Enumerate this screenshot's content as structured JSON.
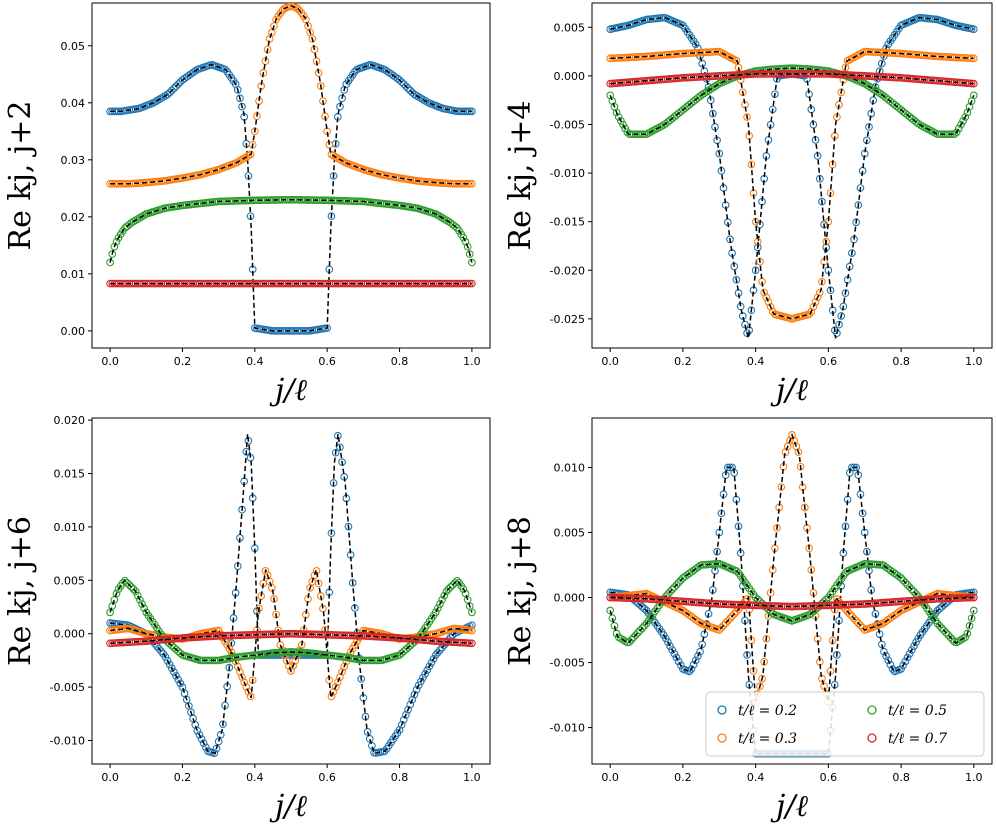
{
  "colors": {
    "t0.2": "#1f77b4",
    "t0.3": "#ff7f0e",
    "t0.5": "#2ca02c",
    "t0.7": "#d62728",
    "theory": "#000000"
  },
  "legend": {
    "entries": [
      "t/ℓ = 0.2",
      "t/ℓ = 0.3",
      "t/ℓ = 0.5",
      "t/ℓ = 0.7"
    ],
    "location": "lower-right of bottom-right panel"
  },
  "chart_data": [
    {
      "type": "scatter",
      "title": "",
      "xlabel": "j/ℓ",
      "ylabel": "Re k_{j, j+2}",
      "xlim": [
        -0.05,
        1.05
      ],
      "ylim": [
        -0.003,
        0.0575
      ],
      "xticks": [
        "0.0",
        "0.2",
        "0.4",
        "0.6",
        "0.8",
        "1.0"
      ],
      "yticks": [
        "0.00",
        "0.01",
        "0.02",
        "0.03",
        "0.04",
        "0.05"
      ],
      "ytick_values": [
        0,
        0.01,
        0.02,
        0.03,
        0.04,
        0.05
      ],
      "series": [
        {
          "name": "t/ℓ = 0.2",
          "x": [
            0,
            0.03,
            0.08,
            0.12,
            0.16,
            0.2,
            0.24,
            0.28,
            0.32,
            0.35,
            0.37,
            0.38,
            0.39,
            0.4,
            0.45,
            0.5,
            0.55,
            0.6,
            0.61,
            0.62,
            0.63,
            0.65,
            0.68,
            0.72,
            0.76,
            0.8,
            0.84,
            0.88,
            0.92,
            0.96,
            1.0
          ],
          "y": [
            0.0385,
            0.0385,
            0.039,
            0.04,
            0.0415,
            0.044,
            0.0458,
            0.0467,
            0.0458,
            0.043,
            0.038,
            0.03,
            0.018,
            0.0005,
            0,
            0,
            0,
            0.0005,
            0.018,
            0.03,
            0.038,
            0.043,
            0.0458,
            0.0467,
            0.0458,
            0.044,
            0.0415,
            0.04,
            0.039,
            0.0385,
            0.0385
          ]
        },
        {
          "name": "t/ℓ = 0.3",
          "x": [
            0,
            0.05,
            0.1,
            0.15,
            0.2,
            0.25,
            0.3,
            0.35,
            0.39,
            0.4,
            0.42,
            0.44,
            0.46,
            0.48,
            0.5,
            0.52,
            0.54,
            0.56,
            0.58,
            0.6,
            0.61,
            0.65,
            0.7,
            0.75,
            0.8,
            0.85,
            0.9,
            0.95,
            1.0
          ],
          "y": [
            0.0258,
            0.0258,
            0.026,
            0.0263,
            0.0268,
            0.0274,
            0.0283,
            0.0295,
            0.031,
            0.035,
            0.044,
            0.051,
            0.0548,
            0.0565,
            0.057,
            0.0565,
            0.0548,
            0.051,
            0.044,
            0.035,
            0.031,
            0.0295,
            0.0283,
            0.0274,
            0.0268,
            0.0263,
            0.026,
            0.0258,
            0.0258
          ]
        },
        {
          "name": "t/ℓ = 0.5",
          "x": [
            0,
            0.01,
            0.02,
            0.04,
            0.06,
            0.1,
            0.15,
            0.2,
            0.3,
            0.4,
            0.5,
            0.6,
            0.7,
            0.8,
            0.85,
            0.9,
            0.94,
            0.96,
            0.98,
            0.99,
            1.0
          ],
          "y": [
            0.012,
            0.0145,
            0.016,
            0.018,
            0.019,
            0.0205,
            0.0215,
            0.022,
            0.0227,
            0.0229,
            0.023,
            0.0229,
            0.0227,
            0.022,
            0.0215,
            0.0205,
            0.019,
            0.018,
            0.016,
            0.0145,
            0.012
          ]
        },
        {
          "name": "t/ℓ = 0.7",
          "x": [
            0,
            0.1,
            0.2,
            0.3,
            0.4,
            0.5,
            0.6,
            0.7,
            0.8,
            0.9,
            1.0
          ],
          "y": [
            0.0083,
            0.0083,
            0.0083,
            0.0083,
            0.0083,
            0.0083,
            0.0083,
            0.0083,
            0.0083,
            0.0083,
            0.0083
          ]
        }
      ]
    },
    {
      "type": "scatter",
      "title": "",
      "xlabel": "j/ℓ",
      "ylabel": "Re k_{j, j+4}",
      "xlim": [
        -0.05,
        1.05
      ],
      "ylim": [
        -0.028,
        0.0075
      ],
      "xticks": [
        "0.0",
        "0.2",
        "0.4",
        "0.6",
        "0.8",
        "1.0"
      ],
      "yticks": [
        "-0.025",
        "-0.020",
        "-0.015",
        "-0.010",
        "-0.005",
        "0.000",
        "0.005"
      ],
      "ytick_values": [
        -0.025,
        -0.02,
        -0.015,
        -0.01,
        -0.005,
        0,
        0.005
      ],
      "series": [
        {
          "name": "t/ℓ = 0.2",
          "x": [
            0,
            0.05,
            0.1,
            0.15,
            0.2,
            0.24,
            0.27,
            0.3,
            0.33,
            0.36,
            0.38,
            0.4,
            0.43,
            0.46,
            0.5,
            0.54,
            0.57,
            0.6,
            0.62,
            0.64,
            0.67,
            0.7,
            0.73,
            0.76,
            0.8,
            0.85,
            0.9,
            0.95,
            1.0
          ],
          "y": [
            0.0048,
            0.0052,
            0.0058,
            0.006,
            0.0052,
            0.003,
            -0.001,
            -0.008,
            -0.017,
            -0.024,
            -0.027,
            -0.02,
            -0.008,
            0,
            0.0002,
            0,
            -0.008,
            -0.02,
            -0.027,
            -0.024,
            -0.017,
            -0.008,
            -0.001,
            0.003,
            0.0052,
            0.006,
            0.0058,
            0.0052,
            0.0048
          ]
        },
        {
          "name": "t/ℓ = 0.3",
          "x": [
            0,
            0.1,
            0.2,
            0.3,
            0.35,
            0.38,
            0.4,
            0.42,
            0.45,
            0.5,
            0.55,
            0.58,
            0.6,
            0.62,
            0.65,
            0.7,
            0.8,
            0.9,
            1.0
          ],
          "y": [
            0.0018,
            0.002,
            0.0023,
            0.0025,
            0.0015,
            -0.005,
            -0.015,
            -0.022,
            -0.0245,
            -0.025,
            -0.0245,
            -0.022,
            -0.015,
            -0.005,
            0.0015,
            0.0025,
            0.0023,
            0.002,
            0.0018
          ]
        },
        {
          "name": "t/ℓ = 0.5",
          "x": [
            0,
            0.02,
            0.05,
            0.1,
            0.15,
            0.2,
            0.25,
            0.3,
            0.35,
            0.4,
            0.45,
            0.5,
            0.55,
            0.6,
            0.65,
            0.7,
            0.75,
            0.8,
            0.85,
            0.9,
            0.95,
            0.98,
            1.0
          ],
          "y": [
            -0.002,
            -0.004,
            -0.006,
            -0.006,
            -0.005,
            -0.0035,
            -0.002,
            -0.0008,
            0,
            0.0005,
            0.0007,
            0.0008,
            0.0007,
            0.0005,
            0,
            -0.0008,
            -0.002,
            -0.0035,
            -0.005,
            -0.006,
            -0.006,
            -0.004,
            -0.002
          ]
        },
        {
          "name": "t/ℓ = 0.7",
          "x": [
            0,
            0.1,
            0.2,
            0.3,
            0.4,
            0.5,
            0.6,
            0.7,
            0.8,
            0.9,
            1.0
          ],
          "y": [
            -0.0008,
            -0.0005,
            -0.0002,
            0,
            0.0002,
            0.0002,
            0.0002,
            0,
            -0.0002,
            -0.0005,
            -0.0008
          ]
        }
      ]
    },
    {
      "type": "scatter",
      "title": "",
      "xlabel": "j/ℓ",
      "ylabel": "Re k_{j, j+6}",
      "xlim": [
        -0.05,
        1.05
      ],
      "ylim": [
        -0.0122,
        0.0202
      ],
      "xticks": [
        "0.0",
        "0.2",
        "0.4",
        "0.6",
        "0.8",
        "1.0"
      ],
      "yticks": [
        "-0.010",
        "-0.005",
        "0.000",
        "0.005",
        "0.010",
        "0.015",
        "0.020"
      ],
      "ytick_values": [
        -0.01,
        -0.005,
        0,
        0.005,
        0.01,
        0.015,
        0.02
      ],
      "series": [
        {
          "name": "t/ℓ = 0.2",
          "x": [
            0,
            0.05,
            0.1,
            0.15,
            0.2,
            0.24,
            0.27,
            0.29,
            0.31,
            0.33,
            0.35,
            0.37,
            0.38,
            0.39,
            0.4,
            0.41,
            0.6,
            0.61,
            0.62,
            0.63,
            0.65,
            0.67,
            0.69,
            0.71,
            0.73,
            0.76,
            0.8,
            0.85,
            0.9,
            0.95,
            1.0
          ],
          "y": [
            0.001,
            0.0008,
            0,
            -0.002,
            -0.005,
            -0.009,
            -0.011,
            -0.0112,
            -0.009,
            -0.003,
            0.005,
            0.014,
            0.0187,
            0.016,
            0.008,
            -0.002,
            -0.002,
            0.008,
            0.016,
            0.0187,
            0.014,
            0.005,
            -0.003,
            -0.009,
            -0.0112,
            -0.011,
            -0.009,
            -0.005,
            -0.002,
            0,
            0.0008
          ]
        },
        {
          "name": "t/ℓ = 0.3",
          "x": [
            0,
            0.05,
            0.1,
            0.15,
            0.2,
            0.25,
            0.3,
            0.34,
            0.37,
            0.39,
            0.41,
            0.43,
            0.45,
            0.47,
            0.5,
            0.53,
            0.55,
            0.57,
            0.59,
            0.61,
            0.63,
            0.66,
            0.7,
            0.75,
            0.8,
            0.85,
            0.9,
            0.95,
            1.0
          ],
          "y": [
            0.0003,
            0.0005,
            0,
            -0.0003,
            -0.0005,
            0,
            0.0003,
            -0.002,
            -0.0045,
            -0.006,
            0.002,
            0.006,
            0.004,
            -0.001,
            -0.0035,
            -0.001,
            0.004,
            0.006,
            0.002,
            -0.006,
            -0.0045,
            -0.002,
            0.0003,
            0,
            -0.0005,
            -0.0003,
            0,
            0.0005,
            0.0003
          ]
        },
        {
          "name": "t/ℓ = 0.5",
          "x": [
            0,
            0.02,
            0.04,
            0.07,
            0.1,
            0.15,
            0.2,
            0.25,
            0.3,
            0.35,
            0.4,
            0.45,
            0.5,
            0.55,
            0.6,
            0.65,
            0.7,
            0.75,
            0.8,
            0.85,
            0.9,
            0.93,
            0.96,
            0.98,
            1.0
          ],
          "y": [
            0.002,
            0.004,
            0.005,
            0.004,
            0.002,
            -0.0005,
            -0.002,
            -0.0025,
            -0.0025,
            -0.0022,
            -0.002,
            -0.0018,
            -0.0017,
            -0.0018,
            -0.002,
            -0.0022,
            -0.0025,
            -0.0025,
            -0.002,
            -0.0005,
            0.002,
            0.004,
            0.005,
            0.004,
            0.002
          ]
        },
        {
          "name": "t/ℓ = 0.7",
          "x": [
            0,
            0.1,
            0.2,
            0.3,
            0.4,
            0.5,
            0.6,
            0.7,
            0.8,
            0.9,
            1.0
          ],
          "y": [
            -0.0009,
            -0.0007,
            -0.0004,
            -0.0002,
            -0.0001,
            0,
            -0.0001,
            -0.0002,
            -0.0004,
            -0.0007,
            -0.0009
          ]
        }
      ]
    },
    {
      "type": "scatter",
      "title": "",
      "xlabel": "j/ℓ",
      "ylabel": "Re k_{j, j+8}",
      "xlim": [
        -0.05,
        1.05
      ],
      "ylim": [
        -0.0128,
        0.0138
      ],
      "xticks": [
        "0.0",
        "0.2",
        "0.4",
        "0.6",
        "0.8",
        "1.0"
      ],
      "yticks": [
        "-0.010",
        "-0.005",
        "0.000",
        "0.005",
        "0.010"
      ],
      "ytick_values": [
        -0.01,
        -0.005,
        0,
        0.005,
        0.01
      ],
      "series": [
        {
          "name": "t/ℓ = 0.2",
          "x": [
            0,
            0.05,
            0.1,
            0.15,
            0.2,
            0.22,
            0.25,
            0.28,
            0.3,
            0.32,
            0.34,
            0.36,
            0.38,
            0.4,
            0.6,
            0.62,
            0.64,
            0.66,
            0.68,
            0.7,
            0.72,
            0.75,
            0.78,
            0.8,
            0.85,
            0.9,
            0.95,
            1.0
          ],
          "y": [
            0.0004,
            0.0002,
            -0.001,
            -0.003,
            -0.0055,
            -0.0057,
            -0.004,
            0,
            0.005,
            0.01,
            0.01,
            0.003,
            -0.006,
            -0.012,
            -0.012,
            -0.006,
            0.003,
            0.01,
            0.01,
            0.005,
            0,
            -0.004,
            -0.0057,
            -0.0055,
            -0.003,
            -0.001,
            0.0002,
            0.0004
          ]
        },
        {
          "name": "t/ℓ = 0.3",
          "x": [
            0,
            0.1,
            0.2,
            0.25,
            0.3,
            0.35,
            0.38,
            0.4,
            0.42,
            0.45,
            0.48,
            0.5,
            0.52,
            0.55,
            0.58,
            0.6,
            0.62,
            0.65,
            0.7,
            0.75,
            0.8,
            0.9,
            1.0
          ],
          "y": [
            0,
            0.0003,
            -0.001,
            -0.002,
            -0.0025,
            -0.001,
            0,
            -0.008,
            -0.006,
            0.003,
            0.011,
            0.0125,
            0.011,
            0.003,
            -0.006,
            -0.008,
            0,
            -0.001,
            -0.0025,
            -0.002,
            -0.001,
            0.0003,
            0
          ]
        },
        {
          "name": "t/ℓ = 0.5",
          "x": [
            0,
            0.02,
            0.05,
            0.1,
            0.15,
            0.2,
            0.25,
            0.3,
            0.35,
            0.4,
            0.45,
            0.5,
            0.55,
            0.6,
            0.65,
            0.7,
            0.75,
            0.8,
            0.85,
            0.9,
            0.95,
            0.98,
            1.0
          ],
          "y": [
            -0.001,
            -0.003,
            -0.0035,
            -0.002,
            0,
            0.0015,
            0.0025,
            0.0026,
            0.002,
            0,
            -0.0013,
            -0.0018,
            -0.0013,
            0,
            0.002,
            0.0026,
            0.0025,
            0.0015,
            0,
            -0.002,
            -0.0035,
            -0.003,
            -0.001
          ]
        },
        {
          "name": "t/ℓ = 0.7",
          "x": [
            0,
            0.1,
            0.2,
            0.3,
            0.4,
            0.5,
            0.6,
            0.7,
            0.8,
            0.9,
            1.0
          ],
          "y": [
            0,
            -0.0001,
            -0.0003,
            -0.0005,
            -0.0006,
            -0.0007,
            -0.0006,
            -0.0005,
            -0.0003,
            -0.0001,
            0
          ]
        }
      ]
    }
  ]
}
